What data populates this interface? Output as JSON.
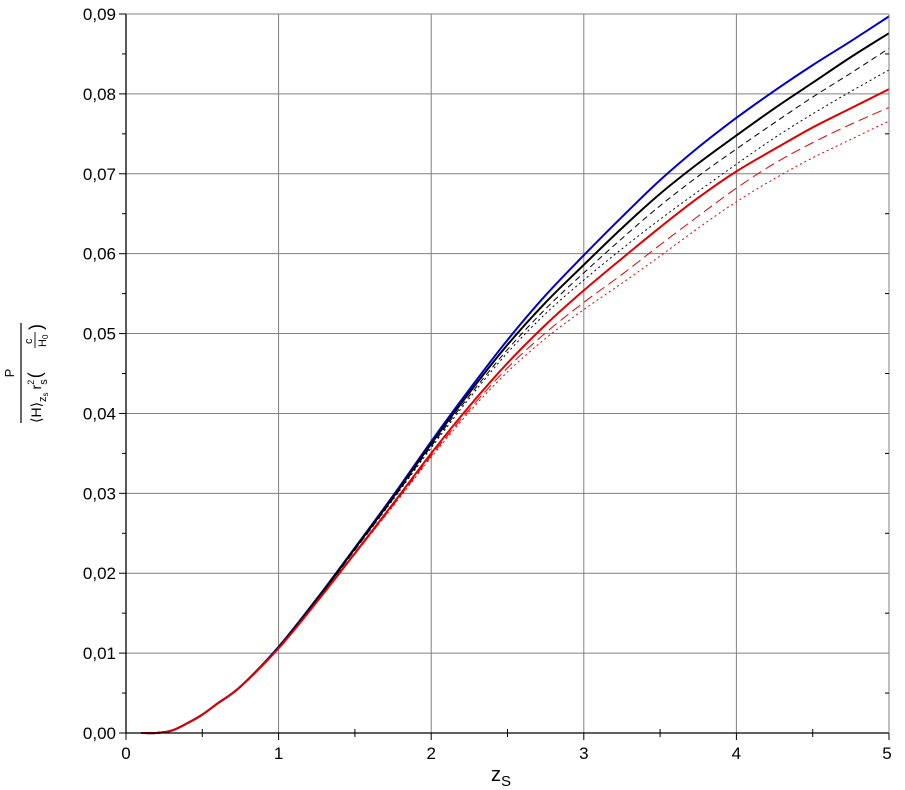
{
  "chart_data": {
    "type": "line",
    "xlabel": "z",
    "xlabel_sub": "S",
    "ylabel": {
      "numerator": "P",
      "H_avg": "H",
      "H_avg_sub": "z",
      "H_avg_subsub": "s",
      "r": "r",
      "r_sup": "2",
      "r_sub": "s",
      "frac_num": "c",
      "frac_den": "H",
      "frac_den_sub": "0"
    },
    "xlim": [
      0,
      5
    ],
    "ylim": [
      0,
      0.09
    ],
    "xticks": [
      0,
      1,
      2,
      3,
      4,
      5
    ],
    "xtick_labels": [
      "0",
      "1",
      "2",
      "3",
      "4",
      "5"
    ],
    "yticks": [
      0,
      0.01,
      0.02,
      0.03,
      0.04,
      0.05,
      0.06,
      0.07,
      0.08,
      0.09
    ],
    "ytick_labels": [
      "0,00",
      "0,01",
      "0,02",
      "0,03",
      "0,04",
      "0,05",
      "0,06",
      "0,07",
      "0,08",
      "0,09"
    ],
    "grid": true,
    "colors": {
      "blue": "#0000cc",
      "black": "#000000",
      "red": "#e00000",
      "grid": "#808080"
    },
    "x": [
      0.1,
      0.2,
      0.3,
      0.4,
      0.5,
      0.6,
      0.75,
      1.0,
      1.25,
      1.5,
      1.75,
      2.0,
      2.25,
      2.5,
      2.75,
      3.0,
      3.25,
      3.5,
      3.75,
      4.0,
      4.25,
      4.5,
      4.75,
      5.0
    ],
    "series": [
      {
        "color": "#0000cc",
        "dash": "solid",
        "width": 2,
        "values": [
          0.0,
          0.0,
          0.0003,
          0.0012,
          0.0023,
          0.0037,
          0.0058,
          0.0108,
          0.0168,
          0.0232,
          0.0297,
          0.0365,
          0.043,
          0.0492,
          0.0548,
          0.0598,
          0.0646,
          0.0692,
          0.0733,
          0.077,
          0.0804,
          0.0836,
          0.0866,
          0.0897
        ]
      },
      {
        "color": "#000000",
        "dash": "solid",
        "width": 2,
        "values": [
          0.0,
          0.0,
          0.0003,
          0.0012,
          0.0023,
          0.0037,
          0.0058,
          0.0107,
          0.0167,
          0.0231,
          0.0295,
          0.0362,
          0.0426,
          0.0486,
          0.0539,
          0.0586,
          0.0632,
          0.0675,
          0.0713,
          0.0748,
          0.0782,
          0.0814,
          0.0846,
          0.0876
        ]
      },
      {
        "color": "#000000",
        "dash": "6,4",
        "width": 1,
        "values": [
          0.0,
          0.0,
          0.0003,
          0.0012,
          0.0023,
          0.0037,
          0.0058,
          0.0107,
          0.0166,
          0.0229,
          0.0293,
          0.0359,
          0.0422,
          0.048,
          0.0531,
          0.0576,
          0.0619,
          0.066,
          0.0697,
          0.0731,
          0.0764,
          0.0796,
          0.0826,
          0.0857
        ]
      },
      {
        "color": "#000000",
        "dash": "2,3",
        "width": 1,
        "values": [
          0.0,
          0.0,
          0.0003,
          0.0012,
          0.0023,
          0.0037,
          0.0058,
          0.0107,
          0.0166,
          0.0229,
          0.0292,
          0.0357,
          0.0419,
          0.0476,
          0.0525,
          0.0567,
          0.0606,
          0.0643,
          0.0678,
          0.0712,
          0.0745,
          0.0775,
          0.0803,
          0.083
        ]
      },
      {
        "color": "#e00000",
        "dash": "solid",
        "width": 2,
        "values": [
          0.0,
          0.0,
          0.0003,
          0.0012,
          0.0023,
          0.0037,
          0.0058,
          0.0106,
          0.0164,
          0.0225,
          0.0287,
          0.035,
          0.0409,
          0.0463,
          0.0511,
          0.0554,
          0.0594,
          0.0633,
          0.067,
          0.0703,
          0.0731,
          0.0758,
          0.0782,
          0.0806
        ]
      },
      {
        "color": "#e00000",
        "dash": "10,5",
        "width": 1,
        "values": [
          0.0,
          0.0,
          0.0003,
          0.0012,
          0.0023,
          0.0037,
          0.0058,
          0.0106,
          0.0164,
          0.0224,
          0.0285,
          0.0347,
          0.0405,
          0.0457,
          0.0501,
          0.0539,
          0.0574,
          0.0611,
          0.0647,
          0.0682,
          0.0713,
          0.0739,
          0.0762,
          0.0783
        ]
      },
      {
        "color": "#e00000",
        "dash": "2,3",
        "width": 1,
        "values": [
          0.0,
          0.0,
          0.0003,
          0.0012,
          0.0023,
          0.0037,
          0.0058,
          0.0106,
          0.0164,
          0.0224,
          0.0284,
          0.0345,
          0.0402,
          0.0452,
          0.0494,
          0.053,
          0.0563,
          0.0597,
          0.0632,
          0.0665,
          0.0694,
          0.072,
          0.0743,
          0.0766
        ]
      }
    ]
  }
}
